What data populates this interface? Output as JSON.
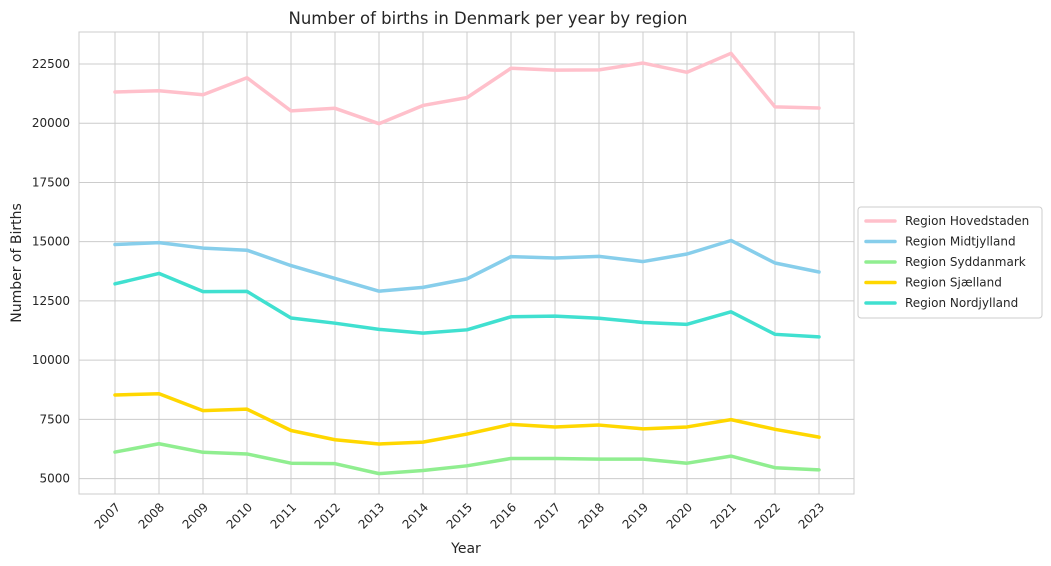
{
  "chart_data": {
    "type": "line",
    "title": "Number of births in Denmark per year by region",
    "xlabel": "Year",
    "ylabel": "Number of Births",
    "x": [
      "2007",
      "2008",
      "2009",
      "2010",
      "2011",
      "2012",
      "2013",
      "2014",
      "2015",
      "2016",
      "2017",
      "2018",
      "2019",
      "2020",
      "2021",
      "2022",
      "2023"
    ],
    "yticks": [
      5000,
      7500,
      10000,
      12500,
      15000,
      17500,
      20000,
      22500
    ],
    "ylim": [
      4350,
      23850
    ],
    "grid": true,
    "legend_position": "right",
    "series": [
      {
        "name": "Region Hovedstaden",
        "color": "#ffc0cb",
        "values": [
          21320,
          21370,
          21200,
          21920,
          20520,
          20630,
          19980,
          20750,
          21080,
          22320,
          22240,
          22250,
          22540,
          22150,
          22950,
          20690,
          20640
        ]
      },
      {
        "name": "Region Midtjylland",
        "color": "#87ceeb",
        "values": [
          14880,
          14960,
          14730,
          14640,
          13990,
          13450,
          12910,
          13070,
          13430,
          14370,
          14310,
          14380,
          14160,
          14480,
          15050,
          14100,
          13720
        ]
      },
      {
        "name": "Region Syddanmark",
        "color": "#90ee90",
        "values": [
          6120,
          6470,
          6110,
          6040,
          5650,
          5630,
          5210,
          5340,
          5540,
          5850,
          5850,
          5820,
          5820,
          5650,
          5950,
          5460,
          5370
        ]
      },
      {
        "name": "Region Sjælland",
        "color": "#ffd700",
        "values": [
          8530,
          8580,
          7870,
          7930,
          7030,
          6640,
          6460,
          6540,
          6880,
          7290,
          7180,
          7260,
          7100,
          7180,
          7490,
          7080,
          6750
        ]
      },
      {
        "name": "Region Nordjylland",
        "color": "#40e0d0",
        "values": [
          13220,
          13660,
          12890,
          12900,
          11780,
          11560,
          11300,
          11140,
          11280,
          11830,
          11860,
          11770,
          11590,
          11510,
          12040,
          11090,
          10980
        ]
      }
    ]
  }
}
